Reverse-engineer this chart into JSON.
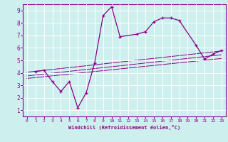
{
  "xlabel": "Windchill (Refroidissement éolien,°C)",
  "xlim": [
    -0.5,
    23.5
  ],
  "ylim": [
    0.5,
    9.5
  ],
  "xticks": [
    0,
    1,
    2,
    3,
    4,
    5,
    6,
    7,
    8,
    9,
    10,
    11,
    12,
    13,
    14,
    15,
    16,
    17,
    18,
    19,
    20,
    21,
    22,
    23
  ],
  "yticks": [
    1,
    2,
    3,
    4,
    5,
    6,
    7,
    8,
    9
  ],
  "bg_color": "#cdf0ee",
  "line_color": "#880088",
  "grid_color": "#ffffff",
  "main_series_x": [
    1,
    2,
    3,
    4,
    5,
    6,
    7,
    8,
    9,
    10,
    11,
    13,
    14,
    15,
    16,
    17,
    18,
    20,
    21,
    22,
    23
  ],
  "main_series_y": [
    4.1,
    4.2,
    3.3,
    2.5,
    3.3,
    1.2,
    2.4,
    4.8,
    8.6,
    9.3,
    6.9,
    7.1,
    7.3,
    8.1,
    8.4,
    8.4,
    8.2,
    6.2,
    5.1,
    5.5,
    5.8
  ],
  "line1_x": [
    0,
    23
  ],
  "line1_y": [
    3.55,
    5.15
  ],
  "line2_x": [
    0,
    23
  ],
  "line2_y": [
    3.75,
    5.45
  ],
  "line3_x": [
    0,
    23
  ],
  "line3_y": [
    4.05,
    5.75
  ]
}
